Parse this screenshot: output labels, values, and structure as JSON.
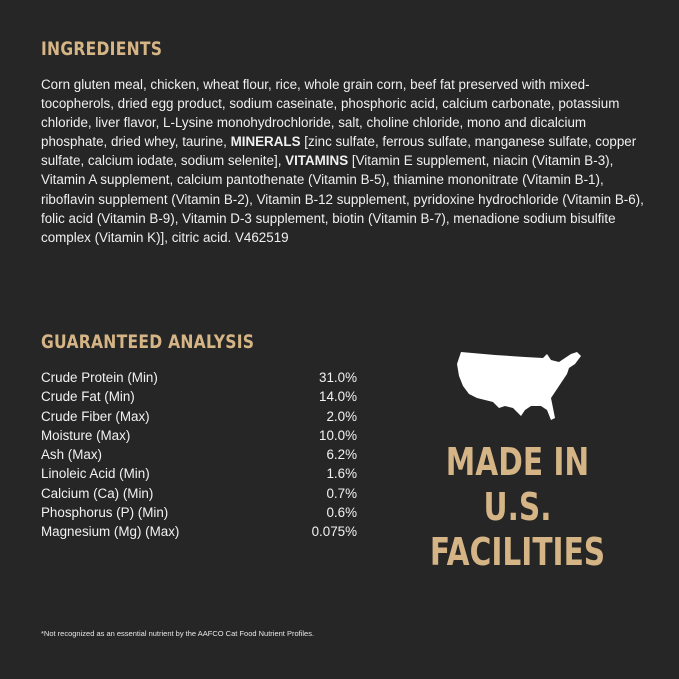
{
  "ingredients": {
    "title": "INGREDIENTS",
    "text_1": "Corn gluten meal, chicken, wheat flour, rice, whole grain corn, beef fat preserved with mixed-tocopherols, dried egg product, sodium caseinate, phosphoric acid, calcium carbonate, potassium chloride, liver flavor, L-Lysine monohydrochloride, salt, choline chloride, mono and dicalcium phosphate, dried whey, taurine, ",
    "minerals_label": "MINERALS",
    "text_2": " [zinc sulfate, ferrous sulfate, manganese sulfate, copper sulfate, calcium iodate, sodium selenite], ",
    "vitamins_label": "VITAMINS",
    "text_3": " [Vitamin E supplement, niacin (Vitamin B-3), Vitamin A supplement, calcium pantothenate (Vitamin B-5), thiamine mononitrate (Vitamin B-1), riboflavin supplement (Vitamin B-2), Vitamin B-12 supplement, pyridoxine hydrochloride (Vitamin B-6), folic acid (Vitamin B-9), Vitamin D-3 supplement, biotin (Vitamin B-7), menadione sodium bisulfite complex (Vitamin K)], citric acid. V462519"
  },
  "analysis": {
    "title": "GUARANTEED ANALYSIS",
    "rows": [
      {
        "label": "Crude Protein (Min)",
        "value": "31.0%"
      },
      {
        "label": "Crude Fat (Min)",
        "value": "14.0%"
      },
      {
        "label": "Crude Fiber (Max)",
        "value": "2.0%"
      },
      {
        "label": "Moisture (Max)",
        "value": "10.0%"
      },
      {
        "label": "Ash (Max)",
        "value": "6.2%"
      },
      {
        "label": "Linoleic Acid (Min)",
        "value": "1.6%"
      },
      {
        "label": "Calcium (Ca) (Min)",
        "value": "0.7%"
      },
      {
        "label": "Phosphorus (P) (Min)",
        "value": "0.6%"
      },
      {
        "label": "Magnesium (Mg) (Max)",
        "value": "0.075%"
      }
    ]
  },
  "made_in": {
    "line1": "MADE IN",
    "line2": "U.S.",
    "line3": "FACILITIES",
    "icon": "usa-map-icon"
  },
  "footnote": "*Not recognized as an essential nutrient by the AAFCO Cat Food Nutrient Profiles.",
  "colors": {
    "background": "#262626",
    "accent": "#d5b585",
    "text": "#f2f2f2"
  }
}
